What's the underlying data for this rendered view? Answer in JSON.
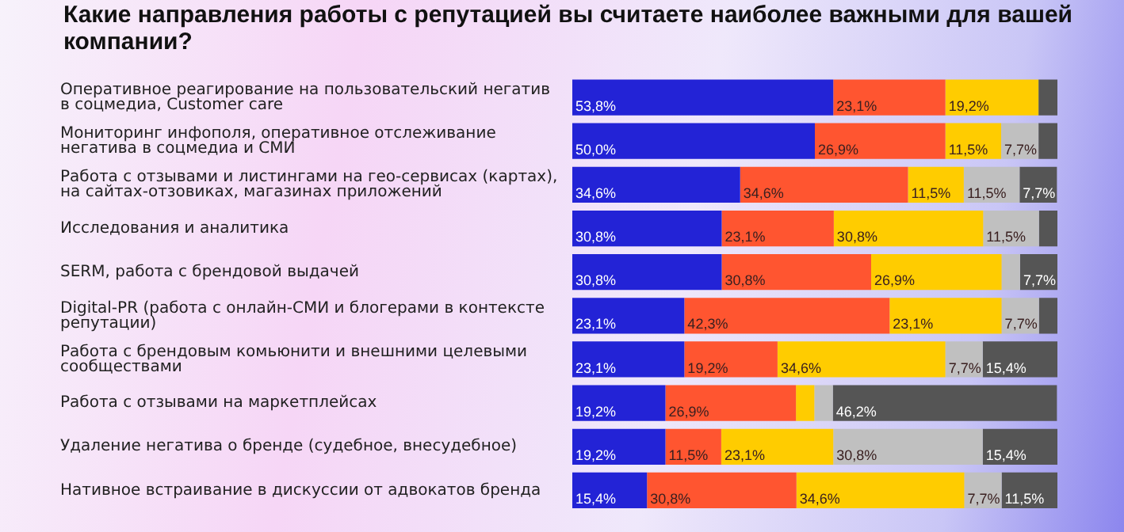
{
  "chart_data": {
    "type": "bar",
    "orientation": "horizontal",
    "stacked": true,
    "title": "Какие направления работы с репутацией вы считаете наиболее важными для вашей компании?",
    "categories": [
      "Оперативное реагирование на пользовательский негатив в соцмедиа, Customer care",
      "Мониторинг инфополя, оперативное отслеживание негатива в соцмедиа и СМИ",
      "Работа с отзывами и листингами на гео-сервисах (картах), на сайтах-отзовиках, магазинах приложений",
      "Исследования и аналитика",
      "SERM, работа с брендовой выдачей",
      "Digital-PR (работа с онлайн-СМИ и блогерами в контексте репутации)",
      "Работа с брендовым комьюнити и внешними целевыми сообществами",
      "Работа с отзывами на маркетплейсах",
      "Удаление негатива о бренде (судебное, внесудебное)",
      "Нативное встраивание в дискуссии от адвокатов бренда"
    ],
    "xlim": [
      0,
      100
    ],
    "tick_labels": "y",
    "grid": false,
    "legend": false,
    "series": [
      {
        "color": "#2323d6",
        "values": [
          53.8,
          50.0,
          34.6,
          30.8,
          30.8,
          23.1,
          23.1,
          19.2,
          19.2,
          15.4
        ],
        "value_labels": [
          "53,8%",
          "50,0%",
          "34,6%",
          "30,8%",
          "30,8%",
          "23,1%",
          "23,1%",
          "19,2%",
          "19,2%",
          "15,4%"
        ]
      },
      {
        "color": "#ff5530",
        "values": [
          23.1,
          26.9,
          34.6,
          23.1,
          30.8,
          42.3,
          19.2,
          26.9,
          11.5,
          30.8
        ],
        "value_labels": [
          "23,1%",
          "26,9%",
          "34,6%",
          "23,1%",
          "30,8%",
          "42,3%",
          "19,2%",
          "26,9%",
          "11,5%",
          "30,8%"
        ]
      },
      {
        "color": "#ffcc00",
        "values": [
          19.2,
          11.5,
          11.5,
          30.8,
          26.9,
          23.1,
          34.6,
          3.8,
          23.1,
          34.6
        ],
        "value_labels": [
          "19,2%",
          "11,5%",
          "11,5%",
          "30,8%",
          "26,9%",
          "23,1%",
          "34,6%",
          null,
          "23,1%",
          "34,6%"
        ]
      },
      {
        "color": "#c0c0c0",
        "values": [
          0,
          7.7,
          11.5,
          11.5,
          3.8,
          7.7,
          7.7,
          3.8,
          30.8,
          7.7
        ],
        "value_labels": [
          null,
          "7,7%",
          "11,5%",
          "11,5%",
          null,
          "7,7%",
          "7,7%",
          null,
          "30,8%",
          "7,7%"
        ]
      },
      {
        "color": "#555555",
        "values": [
          3.9,
          3.9,
          7.7,
          3.8,
          7.7,
          3.8,
          15.4,
          46.2,
          15.4,
          11.5
        ],
        "value_labels": [
          null,
          null,
          "7,7%",
          null,
          "7,7%",
          null,
          "15,4%",
          "46,2%",
          "15,4%",
          "11,5%"
        ]
      }
    ]
  }
}
